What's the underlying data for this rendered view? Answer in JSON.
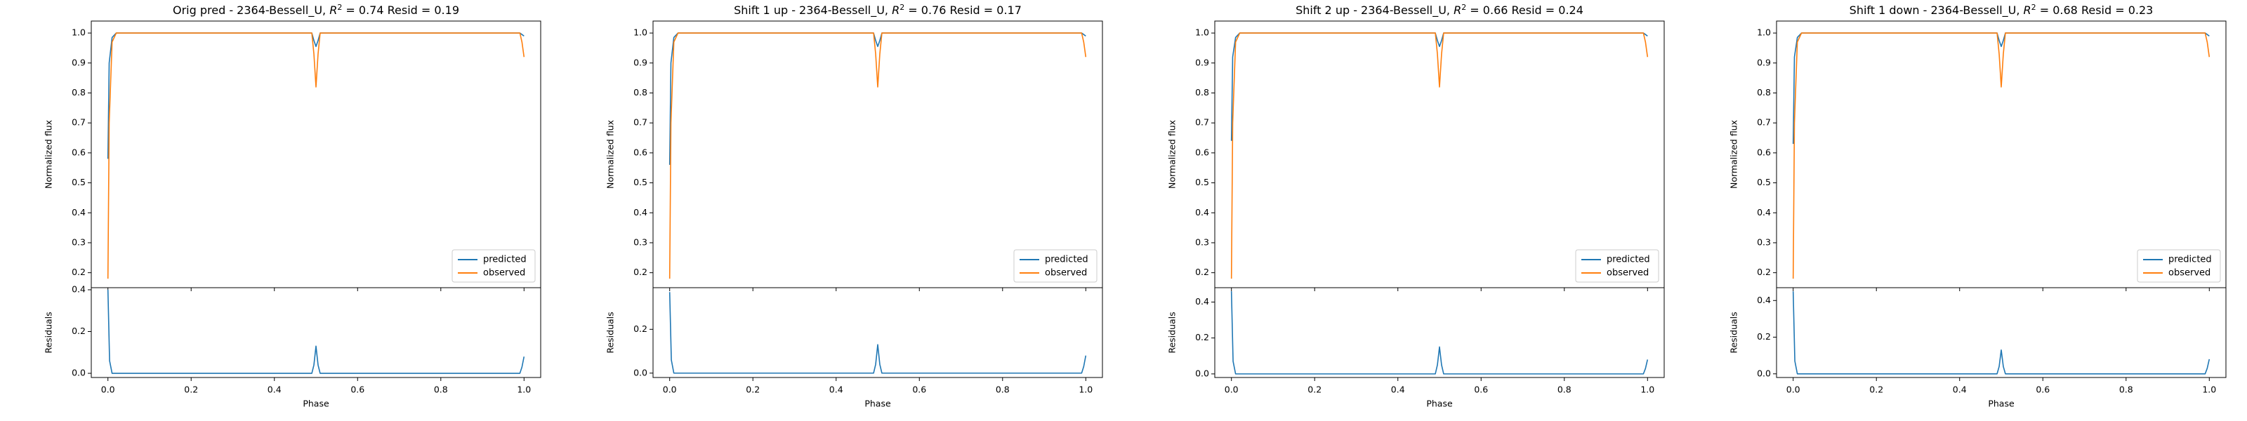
{
  "chart_data": [
    {
      "type": "line",
      "title": "Orig pred - 2364-Bessell_U, R² = 0.74 Resid = 0.19",
      "title_parts": {
        "prefix": "Orig pred - 2364-Bessell_U, ",
        "r": "R",
        "sup": "2",
        "suffix": " = 0.74 Resid = 0.19"
      },
      "flux": {
        "ylabel": "Normalized flux",
        "ylim": [
          0.15,
          1.04
        ],
        "yticks": [
          "0.2",
          "0.3",
          "0.4",
          "0.5",
          "0.6",
          "0.7",
          "0.8",
          "0.9",
          "1.0"
        ],
        "legend_position": "lower-right",
        "series": [
          {
            "name": "predicted",
            "color": "#1f77b4",
            "x": [
              0.0,
              0.003,
              0.01,
              0.02,
              0.49,
              0.495,
              0.5,
              0.505,
              0.51,
              0.99,
              0.995,
              1.0
            ],
            "y": [
              0.58,
              0.9,
              0.985,
              1.0,
              1.0,
              0.975,
              0.955,
              0.975,
              1.0,
              1.0,
              0.995,
              0.99
            ]
          },
          {
            "name": "observed",
            "color": "#ff7f0e",
            "x": [
              0.0,
              0.003,
              0.01,
              0.02,
              0.49,
              0.495,
              0.5,
              0.505,
              0.51,
              0.99,
              0.995,
              1.0
            ],
            "y": [
              0.18,
              0.7,
              0.97,
              1.0,
              1.0,
              0.93,
              0.82,
              0.93,
              1.0,
              1.0,
              0.97,
              0.92
            ]
          }
        ]
      },
      "residuals": {
        "ylabel": "Residuals",
        "xlabel": "Phase",
        "ylim": [
          -0.02,
          0.41
        ],
        "yticks": [
          "0.0",
          "0.2",
          "0.4"
        ],
        "xticks": [
          "0.0",
          "0.2",
          "0.4",
          "0.6",
          "0.8",
          "1.0"
        ],
        "xlim": [
          -0.04,
          1.04
        ],
        "color": "#1f77b4",
        "x": [
          0.0,
          0.004,
          0.01,
          0.49,
          0.495,
          0.5,
          0.505,
          0.51,
          0.99,
          0.995,
          1.0
        ],
        "y": [
          0.4,
          0.06,
          0.0,
          0.0,
          0.04,
          0.13,
          0.04,
          0.0,
          0.0,
          0.03,
          0.08
        ]
      }
    },
    {
      "type": "line",
      "title": "Shift 1 up - 2364-Bessell_U, R² = 0.76 Resid = 0.17",
      "title_parts": {
        "prefix": "Shift 1 up - 2364-Bessell_U, ",
        "r": "R",
        "sup": "2",
        "suffix": " = 0.76 Resid = 0.17"
      },
      "flux": {
        "ylabel": "Normalized flux",
        "ylim": [
          0.15,
          1.04
        ],
        "yticks": [
          "0.2",
          "0.3",
          "0.4",
          "0.5",
          "0.6",
          "0.7",
          "0.8",
          "0.9",
          "1.0"
        ],
        "legend_position": "lower-right",
        "series": [
          {
            "name": "predicted",
            "color": "#1f77b4",
            "x": [
              0.0,
              0.003,
              0.01,
              0.02,
              0.49,
              0.495,
              0.5,
              0.505,
              0.51,
              0.99,
              0.995,
              1.0
            ],
            "y": [
              0.56,
              0.9,
              0.985,
              1.0,
              1.0,
              0.975,
              0.955,
              0.975,
              1.0,
              1.0,
              0.995,
              0.99
            ]
          },
          {
            "name": "observed",
            "color": "#ff7f0e",
            "x": [
              0.0,
              0.003,
              0.01,
              0.02,
              0.49,
              0.495,
              0.5,
              0.505,
              0.51,
              0.99,
              0.995,
              1.0
            ],
            "y": [
              0.18,
              0.7,
              0.97,
              1.0,
              1.0,
              0.93,
              0.82,
              0.93,
              1.0,
              1.0,
              0.97,
              0.92
            ]
          }
        ]
      },
      "residuals": {
        "ylabel": "Residuals",
        "xlabel": "Phase",
        "ylim": [
          -0.02,
          0.39
        ],
        "yticks": [
          "0.0",
          "0.2"
        ],
        "xticks": [
          "0.0",
          "0.2",
          "0.4",
          "0.6",
          "0.8",
          "1.0"
        ],
        "xlim": [
          -0.04,
          1.04
        ],
        "color": "#1f77b4",
        "x": [
          0.0,
          0.004,
          0.01,
          0.49,
          0.495,
          0.5,
          0.505,
          0.51,
          0.99,
          0.995,
          1.0
        ],
        "y": [
          0.37,
          0.06,
          0.0,
          0.0,
          0.04,
          0.13,
          0.04,
          0.0,
          0.0,
          0.03,
          0.08
        ]
      }
    },
    {
      "type": "line",
      "title": "Shift 2 up - 2364-Bessell_U, R² = 0.66 Resid = 0.24",
      "title_parts": {
        "prefix": "Shift 2 up - 2364-Bessell_U, ",
        "r": "R",
        "sup": "2",
        "suffix": " = 0.66 Resid = 0.24"
      },
      "flux": {
        "ylabel": "Normalized flux",
        "ylim": [
          0.15,
          1.04
        ],
        "yticks": [
          "0.2",
          "0.3",
          "0.4",
          "0.5",
          "0.6",
          "0.7",
          "0.8",
          "0.9",
          "1.0"
        ],
        "legend_position": "lower-right",
        "series": [
          {
            "name": "predicted",
            "color": "#1f77b4",
            "x": [
              0.0,
              0.003,
              0.01,
              0.02,
              0.49,
              0.495,
              0.5,
              0.505,
              0.51,
              0.99,
              0.995,
              1.0
            ],
            "y": [
              0.64,
              0.92,
              0.985,
              1.0,
              1.0,
              0.975,
              0.955,
              0.975,
              1.0,
              1.0,
              0.995,
              0.99
            ]
          },
          {
            "name": "observed",
            "color": "#ff7f0e",
            "x": [
              0.0,
              0.003,
              0.01,
              0.02,
              0.49,
              0.495,
              0.5,
              0.505,
              0.51,
              0.99,
              0.995,
              1.0
            ],
            "y": [
              0.18,
              0.7,
              0.97,
              1.0,
              1.0,
              0.93,
              0.82,
              0.93,
              1.0,
              1.0,
              0.97,
              0.92
            ]
          }
        ]
      },
      "residuals": {
        "ylabel": "Residuals",
        "xlabel": "Phase",
        "ylim": [
          -0.02,
          0.48
        ],
        "yticks": [
          "0.0",
          "0.2",
          "0.4"
        ],
        "xticks": [
          "0.0",
          "0.2",
          "0.4",
          "0.6",
          "0.8",
          "1.0"
        ],
        "xlim": [
          -0.04,
          1.04
        ],
        "color": "#1f77b4",
        "x": [
          0.0,
          0.004,
          0.01,
          0.49,
          0.495,
          0.5,
          0.505,
          0.51,
          0.99,
          0.995,
          1.0
        ],
        "y": [
          0.46,
          0.07,
          0.0,
          0.0,
          0.05,
          0.15,
          0.05,
          0.0,
          0.0,
          0.03,
          0.08
        ]
      }
    },
    {
      "type": "line",
      "title": "Shift 1 down - 2364-Bessell_U, R² = 0.68 Resid = 0.23",
      "title_parts": {
        "prefix": "Shift 1 down - 2364-Bessell_U, ",
        "r": "R",
        "sup": "2",
        "suffix": " = 0.68 Resid = 0.23"
      },
      "flux": {
        "ylabel": "Normalized flux",
        "ylim": [
          0.15,
          1.04
        ],
        "yticks": [
          "0.2",
          "0.3",
          "0.4",
          "0.5",
          "0.6",
          "0.7",
          "0.8",
          "0.9",
          "1.0"
        ],
        "legend_position": "lower-right",
        "series": [
          {
            "name": "predicted",
            "color": "#1f77b4",
            "x": [
              0.0,
              0.003,
              0.01,
              0.02,
              0.49,
              0.495,
              0.5,
              0.505,
              0.51,
              0.99,
              0.995,
              1.0
            ],
            "y": [
              0.63,
              0.92,
              0.985,
              1.0,
              1.0,
              0.975,
              0.955,
              0.975,
              1.0,
              1.0,
              0.995,
              0.99
            ]
          },
          {
            "name": "observed",
            "color": "#ff7f0e",
            "x": [
              0.0,
              0.003,
              0.01,
              0.02,
              0.49,
              0.495,
              0.5,
              0.505,
              0.51,
              0.99,
              0.995,
              1.0
            ],
            "y": [
              0.18,
              0.7,
              0.97,
              1.0,
              1.0,
              0.93,
              0.82,
              0.93,
              1.0,
              1.0,
              0.97,
              0.92
            ]
          }
        ]
      },
      "residuals": {
        "ylabel": "Residuals",
        "xlabel": "Phase",
        "ylim": [
          -0.02,
          0.47
        ],
        "yticks": [
          "0.0",
          "0.2",
          "0.4"
        ],
        "xticks": [
          "0.0",
          "0.2",
          "0.4",
          "0.6",
          "0.8",
          "1.0"
        ],
        "xlim": [
          -0.04,
          1.04
        ],
        "color": "#1f77b4",
        "x": [
          0.0,
          0.004,
          0.01,
          0.49,
          0.495,
          0.5,
          0.505,
          0.51,
          0.99,
          0.995,
          1.0
        ],
        "y": [
          0.45,
          0.07,
          0.0,
          0.0,
          0.04,
          0.13,
          0.04,
          0.0,
          0.0,
          0.03,
          0.08
        ]
      }
    }
  ]
}
